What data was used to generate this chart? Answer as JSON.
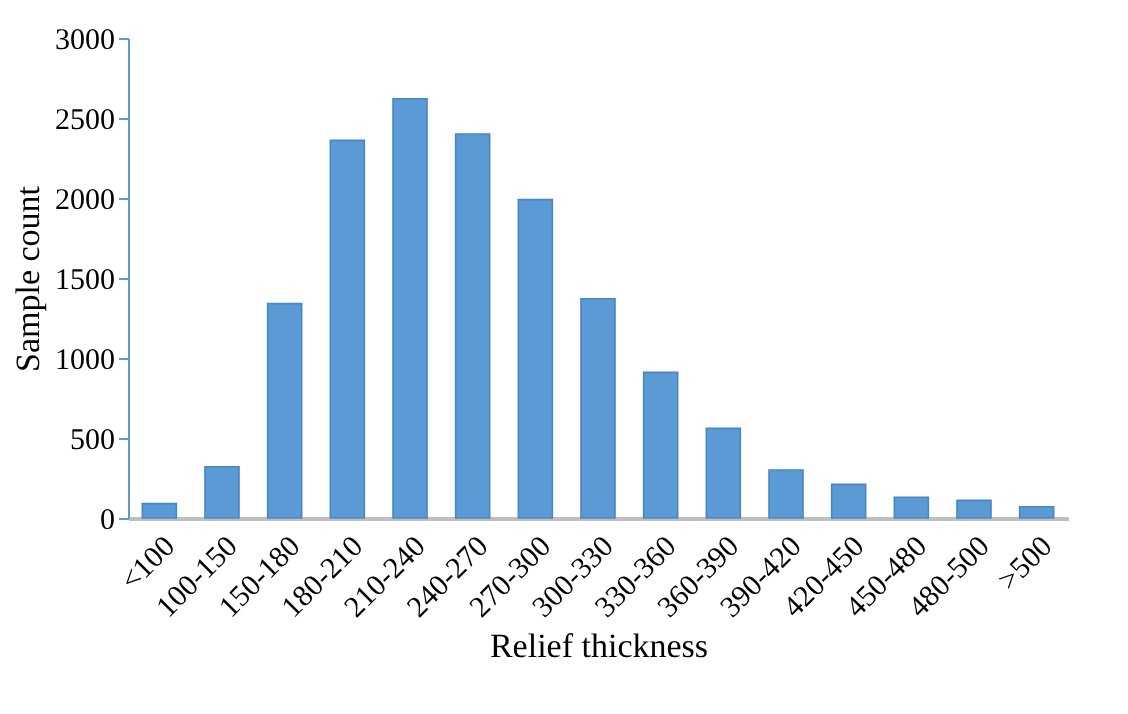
{
  "chart_data": {
    "type": "bar",
    "xlabel": "Relief thickness",
    "ylabel": "Sample count",
    "categories": [
      "<100",
      "100-150",
      "150-180",
      "180-210",
      "210-240",
      "240-270",
      "270-300",
      "300-330",
      "330-360",
      "360-390",
      "390-420",
      "420-450",
      "450-480",
      "480-500",
      ">500"
    ],
    "values": [
      90,
      320,
      1340,
      2360,
      2620,
      2400,
      1990,
      1370,
      910,
      560,
      300,
      210,
      130,
      110,
      70
    ],
    "color": "#5b9bd5",
    "ylim": [
      0,
      3000
    ],
    "yticks": [
      0,
      500,
      1000,
      1500,
      2000,
      2500,
      3000
    ],
    "grid": false
  }
}
